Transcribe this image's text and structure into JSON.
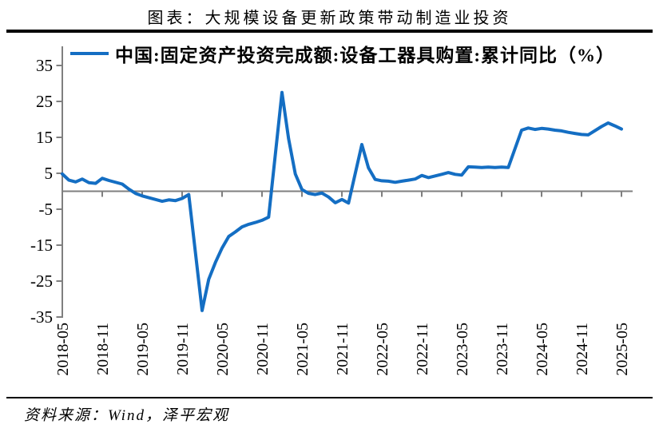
{
  "title": "图表：大规模设备更新政策带动制造业投资",
  "source": "资料来源：Wind，泽平宏观",
  "chart_data": {
    "type": "line",
    "title": "图表：大规模设备更新政策带动制造业投资",
    "legend": "中国:固定资产投资完成额:设备工器具购置:累计同比（%）",
    "unit": "%",
    "line_color": "#146EC3",
    "axis_color": "#7F7F7F",
    "ylim": [
      -35,
      35
    ],
    "ytick_interval": 10,
    "yticks": [
      35,
      25,
      15,
      5,
      -5,
      -15,
      -25,
      -35
    ],
    "grid": "off",
    "legend_position": "top",
    "x_tick_labels": [
      "2018-05",
      "2018-11",
      "2019-05",
      "2019-11",
      "2020-05",
      "2020-11",
      "2021-05",
      "2021-11",
      "2022-05",
      "2022-11",
      "2023-05",
      "2023-11",
      "2024-05",
      "2024-11",
      "2025-05"
    ],
    "points": [
      [
        "2018-05",
        4.8
      ],
      [
        "2018-06",
        3.1
      ],
      [
        "2018-07",
        2.6
      ],
      [
        "2018-08",
        3.4
      ],
      [
        "2018-09",
        2.4
      ],
      [
        "2018-10",
        2.2
      ],
      [
        "2018-11",
        3.6
      ],
      [
        "2018-12",
        3.0
      ],
      [
        "2019-02",
        2.0
      ],
      [
        "2019-03",
        0.6
      ],
      [
        "2019-04",
        -0.6
      ],
      [
        "2019-05",
        -1.3
      ],
      [
        "2019-06",
        -1.8
      ],
      [
        "2019-07",
        -2.3
      ],
      [
        "2019-08",
        -2.8
      ],
      [
        "2019-09",
        -2.4
      ],
      [
        "2019-10",
        -2.6
      ],
      [
        "2019-11",
        -2.0
      ],
      [
        "2019-12",
        -0.9
      ],
      [
        "2020-02",
        -33.2
      ],
      [
        "2020-03",
        -24.5
      ],
      [
        "2020-04",
        -19.8
      ],
      [
        "2020-05",
        -15.8
      ],
      [
        "2020-06",
        -12.6
      ],
      [
        "2020-07",
        -11.3
      ],
      [
        "2020-08",
        -9.9
      ],
      [
        "2020-09",
        -9.2
      ],
      [
        "2020-10",
        -8.7
      ],
      [
        "2020-11",
        -8.1
      ],
      [
        "2020-12",
        -7.2
      ],
      [
        "2021-02",
        27.5
      ],
      [
        "2021-03",
        14.6
      ],
      [
        "2021-04",
        4.8
      ],
      [
        "2021-05",
        0.5
      ],
      [
        "2021-06",
        -0.6
      ],
      [
        "2021-07",
        -0.9
      ],
      [
        "2021-08",
        -0.5
      ],
      [
        "2021-09",
        -1.6
      ],
      [
        "2021-10",
        -3.2
      ],
      [
        "2021-11",
        -2.3
      ],
      [
        "2021-12",
        -3.3
      ],
      [
        "2022-02",
        13.0
      ],
      [
        "2022-03",
        6.5
      ],
      [
        "2022-04",
        3.3
      ],
      [
        "2022-05",
        2.9
      ],
      [
        "2022-06",
        2.8
      ],
      [
        "2022-07",
        2.5
      ],
      [
        "2022-08",
        2.8
      ],
      [
        "2022-09",
        3.1
      ],
      [
        "2022-10",
        3.4
      ],
      [
        "2022-11",
        4.4
      ],
      [
        "2022-12",
        3.8
      ],
      [
        "2023-02",
        4.7
      ],
      [
        "2023-03",
        5.2
      ],
      [
        "2023-04",
        4.7
      ],
      [
        "2023-05",
        4.5
      ],
      [
        "2023-06",
        6.8
      ],
      [
        "2023-07",
        6.7
      ],
      [
        "2023-08",
        6.6
      ],
      [
        "2023-09",
        6.7
      ],
      [
        "2023-10",
        6.6
      ],
      [
        "2023-11",
        6.7
      ],
      [
        "2023-12",
        6.6
      ],
      [
        "2024-02",
        17.0
      ],
      [
        "2024-03",
        17.6
      ],
      [
        "2024-04",
        17.2
      ],
      [
        "2024-05",
        17.5
      ],
      [
        "2024-06",
        17.3
      ],
      [
        "2024-07",
        17.0
      ],
      [
        "2024-08",
        16.8
      ],
      [
        "2024-09",
        16.4
      ],
      [
        "2024-10",
        16.1
      ],
      [
        "2024-11",
        15.8
      ],
      [
        "2024-12",
        15.7
      ],
      [
        "2025-02",
        18.0
      ],
      [
        "2025-03",
        19.0
      ],
      [
        "2025-04",
        18.2
      ],
      [
        "2025-05",
        17.3
      ]
    ]
  }
}
